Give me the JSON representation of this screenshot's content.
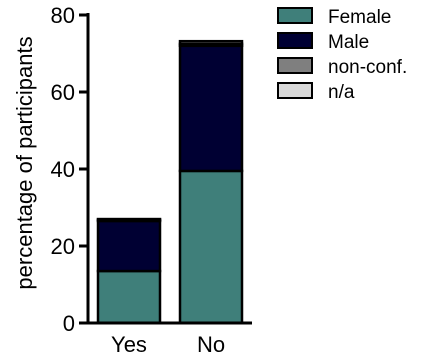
{
  "chart_data": {
    "type": "bar",
    "stacked": true,
    "categories": [
      "Yes",
      "No"
    ],
    "series": [
      {
        "name": "Female",
        "color": "#3f7f7a",
        "values": [
          13.5,
          39.5
        ]
      },
      {
        "name": "Male",
        "color": "#000033",
        "values": [
          13,
          32.5
        ]
      },
      {
        "name": "non-conf.",
        "color": "#7f7f7f",
        "values": [
          0.3,
          0.5
        ]
      },
      {
        "name": "n/a",
        "color": "#d9d9d9",
        "values": [
          0.2,
          0.7
        ]
      }
    ],
    "title": "",
    "xlabel": "",
    "ylabel": "percentage of participants",
    "ylim": [
      0,
      80
    ],
    "yticks": [
      "0",
      "20",
      "40",
      "60",
      "80"
    ],
    "legend_position": "top-right",
    "grid": false
  }
}
